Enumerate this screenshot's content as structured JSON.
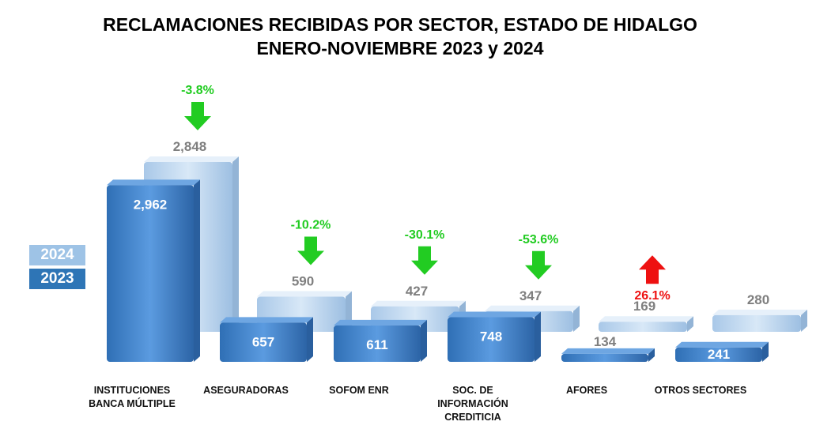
{
  "title_line1": "RECLAMACIONES RECIBIDAS POR SECTOR, ESTADO DE HIDALGO",
  "title_line2": "ENERO-NOVIEMBRE 2023 y 2024",
  "legend": {
    "label_2024": "2024",
    "label_2023": "2023"
  },
  "colors": {
    "y2023": "#3f7fc4",
    "y2024": "#bcd6ee",
    "down": "#22cc22",
    "up": "#ee1111"
  },
  "chart_data": {
    "type": "bar",
    "title": "RECLAMACIONES RECIBIDAS POR SECTOR, ESTADO DE HIDALGO",
    "subtitle": "ENERO-NOVIEMBRE 2023 y 2024",
    "categories": [
      "INSTITUCIONES BANCA MÚLTIPLE",
      "ASEGURADORAS",
      "SOFOM ENR",
      "SOC. DE INFORMACIÓN CREDITICIA",
      "AFORES",
      "OTROS SECTORES"
    ],
    "category_lines": [
      [
        "INSTITUCIONES",
        "BANCA MÚLTIPLE"
      ],
      [
        "ASEGURADORAS"
      ],
      [
        "SOFOM ENR"
      ],
      [
        "SOC. DE",
        "INFORMACIÓN",
        "CREDITICIA"
      ],
      [
        "AFORES"
      ],
      [
        "OTROS SECTORES"
      ]
    ],
    "series": [
      {
        "name": "2023",
        "values": [
          2962,
          657,
          611,
          748,
          134,
          241
        ],
        "labels": [
          "2,962",
          "657",
          "611",
          "748",
          "134",
          "241"
        ]
      },
      {
        "name": "2024",
        "values": [
          2848,
          590,
          427,
          347,
          169,
          280
        ],
        "labels": [
          "2,848",
          "590",
          "427",
          "347",
          "169",
          "280"
        ]
      }
    ],
    "changes": [
      "-3.8%",
      "-10.2%",
      "-30.1%",
      "-53.6%",
      "26.1%",
      null
    ],
    "change_direction": [
      "down",
      "down",
      "down",
      "down",
      "up",
      null
    ],
    "legend_position": "left",
    "grid": false
  }
}
